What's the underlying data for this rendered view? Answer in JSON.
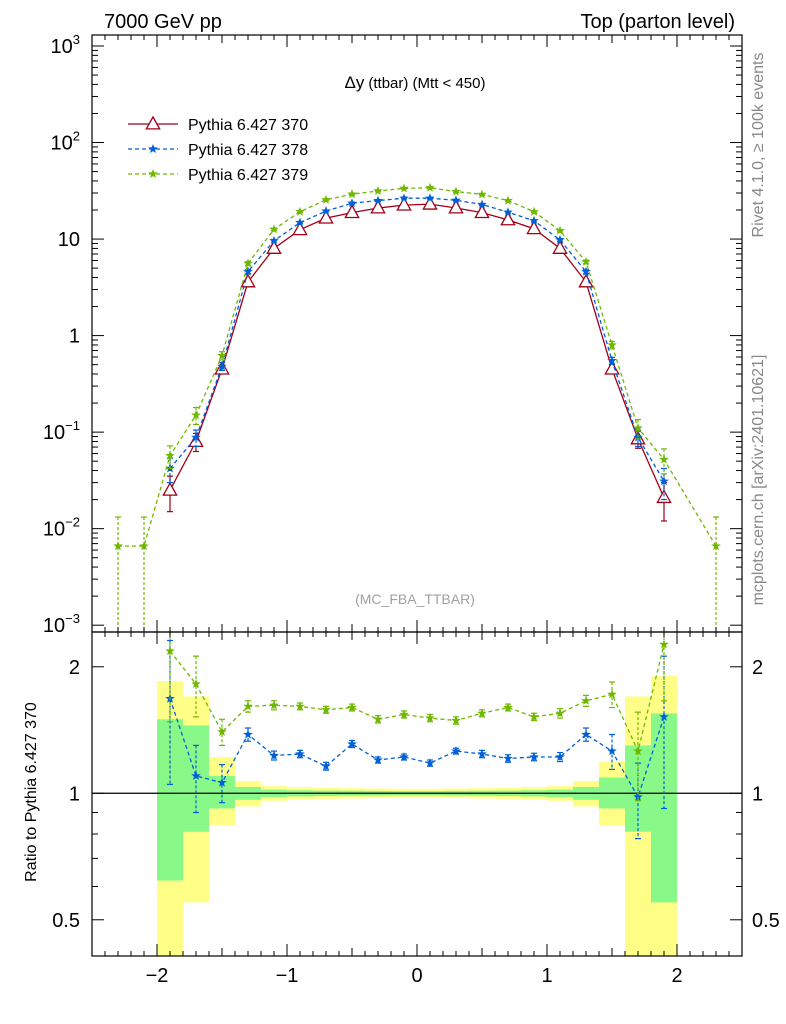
{
  "header": {
    "left": "7000 GeV pp",
    "right": "Top (parton level)"
  },
  "side": {
    "rivet": "Rivet 4.1.0, ≥ 100k events",
    "mcplots": "mcplots.cern.ch [arXiv:2401.10621]"
  },
  "colors": {
    "s370": "#a00018",
    "s378": "#0060d8",
    "s379": "#70b800",
    "band_yellow": "#ffff88",
    "band_green": "#88f888"
  },
  "chart_data": [
    {
      "type": "line",
      "title_symbol": "Δy",
      "title_rest": "(ttbar) (Mtt < 450)",
      "watermark": "(MC_FBA_TTBAR)",
      "yscale": "log",
      "xlim": [
        -2.5,
        2.5
      ],
      "ylim": [
        0.00085,
        1300
      ],
      "legend_position": "top-left",
      "y_tick_labels": [
        {
          "value": 1000,
          "base": "10",
          "exp": "3"
        },
        {
          "value": 100,
          "base": "10",
          "exp": "2"
        },
        {
          "value": 10,
          "base": "10",
          "exp": ""
        },
        {
          "value": 1,
          "base": "1",
          "exp": ""
        },
        {
          "value": 0.1,
          "base": "10",
          "exp": "−1"
        },
        {
          "value": 0.01,
          "base": "10",
          "exp": "−2"
        },
        {
          "value": 0.001,
          "base": "10",
          "exp": "−3"
        }
      ],
      "series": [
        {
          "name": "Pythia 6.427 370",
          "color": "#a00018",
          "marker": "triangle",
          "line": "solid",
          "x": [
            -1.9,
            -1.7,
            -1.5,
            -1.3,
            -1.1,
            -0.9,
            -0.7,
            -0.5,
            -0.3,
            -0.1,
            0.1,
            0.3,
            0.5,
            0.7,
            0.9,
            1.1,
            1.3,
            1.5,
            1.7,
            1.9
          ],
          "y": [
            0.025,
            0.08,
            0.45,
            3.6,
            8.0,
            12.5,
            16.5,
            18.8,
            21.0,
            22.5,
            23.0,
            21.0,
            18.8,
            15.8,
            12.8,
            8.0,
            3.6,
            0.45,
            0.085,
            0.021
          ],
          "err": [
            0.01,
            0.017,
            0.045,
            0.2,
            0.3,
            0.4,
            0.45,
            0.5,
            0.5,
            0.5,
            0.5,
            0.5,
            0.5,
            0.45,
            0.4,
            0.3,
            0.2,
            0.045,
            0.017,
            0.009
          ]
        },
        {
          "name": "Pythia 6.427 378",
          "color": "#0060d8",
          "marker": "star",
          "line": "dashed",
          "x": [
            -1.9,
            -1.7,
            -1.5,
            -1.3,
            -1.1,
            -0.9,
            -0.7,
            -0.5,
            -0.3,
            -0.1,
            0.1,
            0.3,
            0.5,
            0.7,
            0.9,
            1.1,
            1.3,
            1.5,
            1.7,
            1.9
          ],
          "y": [
            0.042,
            0.088,
            0.48,
            4.6,
            9.6,
            14.8,
            19.5,
            23.5,
            25.0,
            26.5,
            26.5,
            25.2,
            22.8,
            19.0,
            15.5,
            9.8,
            4.6,
            0.55,
            0.088,
            0.031
          ],
          "err": [
            0.012,
            0.017,
            0.045,
            0.2,
            0.3,
            0.4,
            0.45,
            0.5,
            0.5,
            0.5,
            0.5,
            0.5,
            0.5,
            0.45,
            0.4,
            0.3,
            0.2,
            0.045,
            0.017,
            0.011
          ]
        },
        {
          "name": "Pythia 6.427 379",
          "color": "#70b800",
          "marker": "star",
          "line": "dashed",
          "x": [
            -2.3,
            -2.1,
            -1.9,
            -1.7,
            -1.5,
            -1.3,
            -1.1,
            -0.9,
            -0.7,
            -0.5,
            -0.3,
            -0.1,
            0.1,
            0.3,
            0.5,
            0.7,
            0.9,
            1.1,
            1.3,
            1.5,
            1.7,
            1.9,
            2.3
          ],
          "y": [
            0.0066,
            0.0066,
            0.057,
            0.15,
            0.62,
            5.6,
            12.6,
            19.2,
            25.5,
            29.2,
            31.5,
            33.5,
            34.0,
            31.0,
            29.0,
            25.0,
            19.2,
            12.2,
            5.8,
            0.8,
            0.11,
            0.052,
            0.0066
          ],
          "err": [
            0.0066,
            0.0066,
            0.015,
            0.03,
            0.06,
            0.25,
            0.35,
            0.45,
            0.5,
            0.55,
            0.55,
            0.6,
            0.6,
            0.55,
            0.55,
            0.5,
            0.45,
            0.35,
            0.25,
            0.07,
            0.025,
            0.015,
            0.0066
          ]
        }
      ]
    },
    {
      "type": "line",
      "ylabel": "Ratio to Pythia 6.427 370",
      "yscale": "log",
      "xlim": [
        -2.5,
        2.5
      ],
      "ylim": [
        0.41,
        2.42
      ],
      "y_tick_labels": [
        "0.5",
        "1",
        "2"
      ],
      "y_tick_values": [
        0.5,
        1,
        2
      ],
      "x_tick_labels": [
        "−2",
        "−1",
        "0",
        "1",
        "2"
      ],
      "x_tick_values": [
        -2,
        -1,
        0,
        1,
        2
      ],
      "reference_line": 1,
      "band": {
        "edges": [
          -2.0,
          -1.8,
          -1.6,
          -1.4,
          -1.2,
          -1.0,
          -0.8,
          -0.6,
          -0.4,
          -0.2,
          0.0,
          0.2,
          0.4,
          0.6,
          0.8,
          1.0,
          1.2,
          1.4,
          1.6,
          1.8,
          2.0
        ],
        "yellow_low": [
          0.3,
          0.55,
          0.84,
          0.93,
          0.96,
          0.966,
          0.97,
          0.972,
          0.974,
          0.975,
          0.975,
          0.974,
          0.972,
          0.97,
          0.966,
          0.96,
          0.93,
          0.84,
          0.3,
          0.3
        ],
        "yellow_high": [
          1.85,
          1.7,
          1.22,
          1.07,
          1.04,
          1.034,
          1.03,
          1.028,
          1.026,
          1.025,
          1.025,
          1.026,
          1.028,
          1.03,
          1.034,
          1.04,
          1.07,
          1.19,
          1.7,
          1.9
        ],
        "green_low": [
          0.62,
          0.81,
          0.92,
          0.965,
          0.98,
          0.983,
          0.985,
          0.986,
          0.987,
          0.988,
          0.988,
          0.987,
          0.986,
          0.985,
          0.983,
          0.98,
          0.965,
          0.92,
          0.81,
          0.55
        ],
        "green_high": [
          1.5,
          1.45,
          1.1,
          1.035,
          1.02,
          1.017,
          1.015,
          1.014,
          1.013,
          1.012,
          1.012,
          1.013,
          1.014,
          1.015,
          1.017,
          1.02,
          1.035,
          1.09,
          1.3,
          1.55
        ]
      },
      "series": [
        {
          "name": "Pythia 6.427 378",
          "color": "#0060d8",
          "x": [
            -1.9,
            -1.7,
            -1.5,
            -1.3,
            -1.1,
            -0.9,
            -0.7,
            -0.5,
            -0.3,
            -0.1,
            0.1,
            0.3,
            0.5,
            0.7,
            0.9,
            1.1,
            1.3,
            1.5,
            1.7,
            1.9
          ],
          "y": [
            1.68,
            1.1,
            1.06,
            1.38,
            1.23,
            1.24,
            1.16,
            1.31,
            1.2,
            1.22,
            1.18,
            1.26,
            1.24,
            1.21,
            1.22,
            1.22,
            1.38,
            1.26,
            0.98,
            1.52
          ],
          "err": [
            0.63,
            0.2,
            0.11,
            0.05,
            0.03,
            0.025,
            0.025,
            0.025,
            0.02,
            0.02,
            0.02,
            0.02,
            0.025,
            0.025,
            0.025,
            0.03,
            0.05,
            0.12,
            0.2,
            0.6
          ]
        },
        {
          "name": "Pythia 6.427 379",
          "color": "#70b800",
          "x": [
            -1.9,
            -1.7,
            -1.5,
            -1.3,
            -1.1,
            -0.9,
            -0.7,
            -0.5,
            -0.3,
            -0.1,
            0.1,
            0.3,
            0.5,
            0.7,
            0.9,
            1.1,
            1.3,
            1.5,
            1.7,
            1.9
          ],
          "y": [
            2.18,
            1.82,
            1.4,
            1.61,
            1.62,
            1.61,
            1.58,
            1.6,
            1.5,
            1.54,
            1.51,
            1.49,
            1.55,
            1.6,
            1.52,
            1.55,
            1.66,
            1.72,
            1.26,
            2.26
          ],
          "err": [
            0.7,
            0.3,
            0.1,
            0.05,
            0.04,
            0.03,
            0.03,
            0.03,
            0.03,
            0.03,
            0.03,
            0.03,
            0.03,
            0.03,
            0.03,
            0.04,
            0.05,
            0.12,
            0.3,
            0.6
          ]
        }
      ]
    }
  ]
}
